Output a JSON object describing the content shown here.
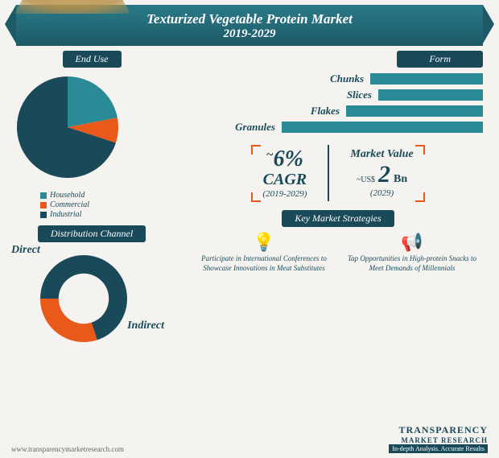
{
  "banner": {
    "title": "Texturized Vegetable Protein Market",
    "years": "2019-2029"
  },
  "endUse": {
    "label": "End Use",
    "slices": [
      {
        "name": "Household",
        "color": "#2a8a95",
        "pct": 22
      },
      {
        "name": "Commercial",
        "color": "#e8591a",
        "pct": 8
      },
      {
        "name": "Industrial",
        "color": "#1a4a5a",
        "pct": 70
      }
    ]
  },
  "distribution": {
    "label": "Distribution Channel",
    "direct": {
      "label": "Direct",
      "pct": 70,
      "color": "#1a4a5a"
    },
    "indirect": {
      "label": "Indirect",
      "pct": 30,
      "color": "#e8591a"
    }
  },
  "form": {
    "label": "Form",
    "bars": [
      {
        "label": "Chunks",
        "value": 140
      },
      {
        "label": "Slices",
        "value": 130
      },
      {
        "label": "Flakes",
        "value": 170
      },
      {
        "label": "Granules",
        "value": 250
      }
    ],
    "bar_color": "#2a8a95"
  },
  "cagr": {
    "tilde": "~",
    "value": "6",
    "pct": "%",
    "label": "CAGR",
    "years": "(2019-2029)"
  },
  "marketValue": {
    "label": "Market Value",
    "pre": "~US$",
    "value": "2",
    "suf": "Bn",
    "year": "(2029)"
  },
  "kms": {
    "label": "Key Market Strategies",
    "items": [
      {
        "icon": "💡",
        "text": "Participate in International Conferences to Showcase Innovations in Meat Substitutes"
      },
      {
        "icon": "📢",
        "text": "Tap Opportunities in High-protein Snacks to Meet Demands of Millennials"
      }
    ]
  },
  "footer": {
    "url": "www.transparencymarketresearch.com",
    "logo1": "TRANSPARENCY",
    "logo2": "MARKET RESEARCH",
    "tag": "In-depth Analysis. Accurate Results"
  }
}
